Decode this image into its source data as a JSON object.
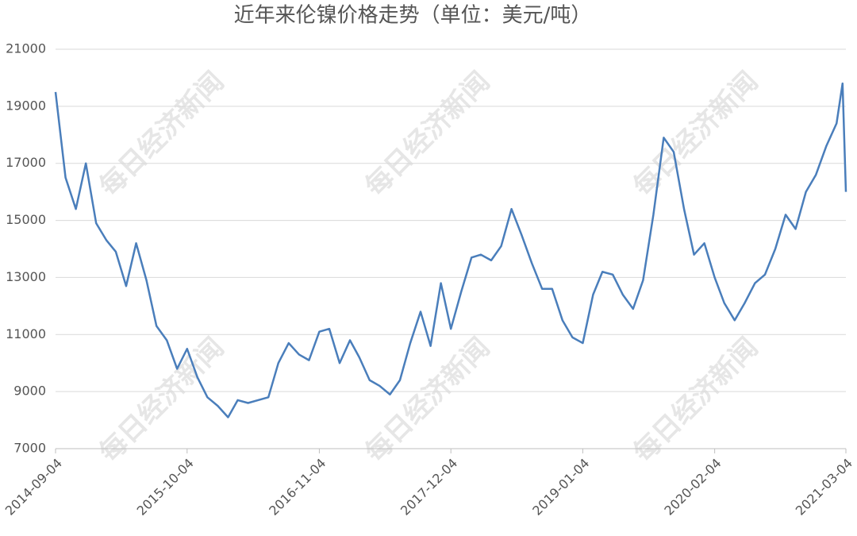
{
  "watermark": "每日经济新闻",
  "chart_data": {
    "type": "line",
    "title": "近年来伦镍价格走势（单位：美元/吨）",
    "x": [
      "2014-09-04",
      "2014-10-04",
      "2014-11-04",
      "2014-12-04",
      "2015-01-04",
      "2015-02-04",
      "2015-03-04",
      "2015-04-04",
      "2015-05-04",
      "2015-06-04",
      "2015-07-04",
      "2015-08-04",
      "2015-09-04",
      "2015-10-04",
      "2015-11-04",
      "2015-12-04",
      "2016-01-04",
      "2016-02-04",
      "2016-03-04",
      "2016-04-04",
      "2016-05-04",
      "2016-06-04",
      "2016-07-04",
      "2016-08-04",
      "2016-09-04",
      "2016-10-04",
      "2016-11-04",
      "2016-12-04",
      "2017-01-04",
      "2017-02-04",
      "2017-03-04",
      "2017-04-04",
      "2017-05-04",
      "2017-06-04",
      "2017-07-04",
      "2017-08-04",
      "2017-09-04",
      "2017-10-04",
      "2017-11-04",
      "2017-12-04",
      "2018-01-04",
      "2018-02-04",
      "2018-03-04",
      "2018-04-04",
      "2018-05-04",
      "2018-06-04",
      "2018-07-04",
      "2018-08-04",
      "2018-09-04",
      "2018-10-04",
      "2018-11-04",
      "2018-12-04",
      "2019-01-04",
      "2019-02-04",
      "2019-03-04",
      "2019-04-04",
      "2019-05-04",
      "2019-06-04",
      "2019-07-04",
      "2019-08-04",
      "2019-09-04",
      "2019-10-04",
      "2019-11-04",
      "2019-12-04",
      "2020-01-04",
      "2020-02-04",
      "2020-03-04",
      "2020-04-04",
      "2020-05-04",
      "2020-06-04",
      "2020-07-04",
      "2020-08-04",
      "2020-09-04",
      "2020-10-04",
      "2020-11-04",
      "2020-12-04",
      "2021-01-04",
      "2021-02-04",
      "2021-02-22",
      "2021-03-04"
    ],
    "series": [
      {
        "color": "#4a7ebb",
        "values": [
          19500,
          16500,
          15400,
          17000,
          14900,
          14300,
          13900,
          12700,
          14200,
          12900,
          11300,
          10800,
          9800,
          10500,
          9500,
          8800,
          8500,
          8100,
          8700,
          8600,
          8700,
          8800,
          10000,
          10700,
          10300,
          10100,
          11100,
          11200,
          10000,
          10800,
          10200,
          9400,
          9200,
          8900,
          9400,
          10700,
          11800,
          10600,
          12800,
          11200,
          12500,
          13700,
          13800,
          13600,
          14100,
          15400,
          14500,
          13500,
          12600,
          12600,
          11500,
          10900,
          10700,
          12400,
          13200,
          13100,
          12400,
          11900,
          12900,
          15200,
          17900,
          17400,
          15400,
          13800,
          14200,
          13000,
          12100,
          11500,
          12100,
          12800,
          13100,
          14000,
          15200,
          14700,
          16000,
          16600,
          17600,
          18400,
          19800,
          16000
        ]
      }
    ],
    "xlim": [
      "2014-09-04",
      "2021-03-04"
    ],
    "xticks": [
      "2014-09-04",
      "2015-10-04",
      "2016-11-04",
      "2017-12-04",
      "2019-01-04",
      "2020-02-04",
      "2021-03-04"
    ],
    "ylim": [
      7000,
      21000
    ],
    "yticks": [
      7000,
      9000,
      11000,
      13000,
      15000,
      17000,
      19000,
      21000
    ],
    "grid": true
  }
}
